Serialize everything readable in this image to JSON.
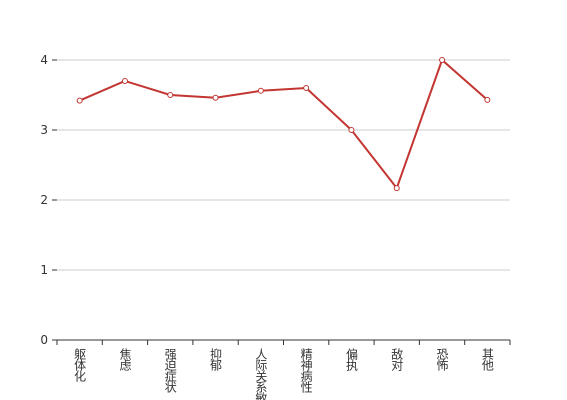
{
  "chart_data": {
    "type": "line",
    "categories": [
      "躯体化",
      "焦虑",
      "强迫症状",
      "抑郁",
      "人际关系敏感",
      "精神病性",
      "偏执",
      "敌对",
      "恐怖",
      "其他"
    ],
    "values": [
      3.42,
      3.7,
      3.5,
      3.46,
      3.56,
      3.6,
      3.0,
      2.17,
      4.0,
      3.43
    ],
    "color": "#c23531",
    "ylim": [
      0,
      4
    ],
    "yticks": [
      0,
      1,
      2,
      3,
      4
    ],
    "grid": true
  }
}
